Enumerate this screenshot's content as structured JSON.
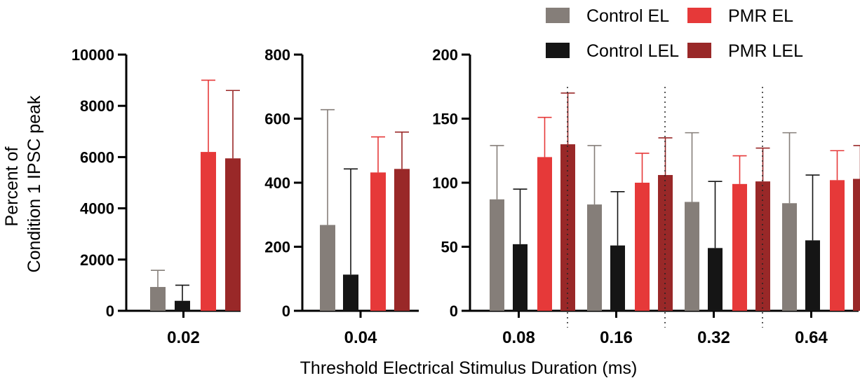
{
  "chart_data": {
    "type": "bar",
    "title": "",
    "ylabel": "Percent of Condition 1 IPSC peak",
    "ylabel_lines": [
      "Percent of",
      "Condition 1 IPSC peak"
    ],
    "xlabel": "Threshold Electrical Stimulus Duration (ms)",
    "legend_position": "top-right",
    "series": [
      {
        "name": "Control EL",
        "color": "#857e79"
      },
      {
        "name": "Control LEL",
        "color": "#151515"
      },
      {
        "name": "PMR EL",
        "color": "#e63939"
      },
      {
        "name": "PMR LEL",
        "color": "#992828"
      }
    ],
    "panels": [
      {
        "ylim": [
          0,
          10000
        ],
        "yticks": [
          0,
          2000,
          4000,
          6000,
          8000,
          10000
        ],
        "categories": [
          "0.02"
        ],
        "values": [
          [
            930,
            390,
            6200,
            5950
          ]
        ],
        "errors": [
          [
            1580,
            1000,
            9000,
            8600
          ]
        ]
      },
      {
        "ylim": [
          0,
          800
        ],
        "yticks": [
          0,
          200,
          400,
          600,
          800
        ],
        "categories": [
          "0.04"
        ],
        "values": [
          [
            268,
            113,
            432,
            443
          ]
        ],
        "errors": [
          [
            628,
            443,
            543,
            558
          ]
        ]
      },
      {
        "ylim": [
          0,
          200
        ],
        "yticks": [
          0,
          50,
          100,
          150,
          200
        ],
        "categories": [
          "0.08",
          "0.16",
          "0.32",
          "0.64"
        ],
        "values": [
          [
            87,
            52,
            120,
            130
          ],
          [
            83,
            51,
            100,
            106
          ],
          [
            85,
            49,
            99,
            101
          ],
          [
            84,
            55,
            102,
            103
          ]
        ],
        "errors": [
          [
            129,
            95,
            151,
            170
          ],
          [
            129,
            93,
            123,
            135
          ],
          [
            139,
            101,
            121,
            127
          ],
          [
            139,
            106,
            125,
            129
          ]
        ]
      }
    ]
  }
}
